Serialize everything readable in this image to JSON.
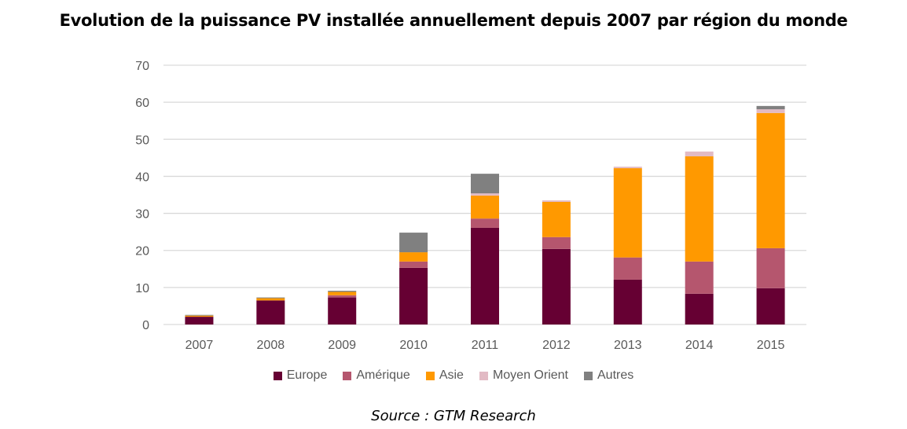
{
  "chart_data": {
    "type": "bar",
    "stacked": true,
    "title": "Evolution de la puissance PV installée annuellement depuis 2007 par région du monde",
    "xlabel": "",
    "ylabel": "",
    "ylim": [
      0,
      70
    ],
    "yticks": [
      0,
      10,
      20,
      30,
      40,
      50,
      60,
      70
    ],
    "grid": true,
    "legend_position": "bottom",
    "categories": [
      "2007",
      "2008",
      "2009",
      "2010",
      "2011",
      "2012",
      "2013",
      "2014",
      "2015"
    ],
    "series": [
      {
        "name": "Europe",
        "color": "#660033",
        "values": [
          2.1,
          6.5,
          7.3,
          15.3,
          26.1,
          20.4,
          12.1,
          8.3,
          9.8
        ]
      },
      {
        "name": "Amérique",
        "color": "#B5566E",
        "values": [
          0.0,
          0.0,
          0.6,
          1.7,
          2.5,
          3.2,
          6.0,
          8.7,
          10.8
        ]
      },
      {
        "name": "Asie",
        "color": "#FF9900",
        "values": [
          0.3,
          0.6,
          0.9,
          2.5,
          6.2,
          9.5,
          24.1,
          28.4,
          36.5
        ]
      },
      {
        "name": "Moyen Orient",
        "color": "#E2BAC4",
        "values": [
          0.0,
          0.0,
          0.0,
          0.0,
          0.6,
          0.4,
          0.4,
          1.3,
          1.0
        ]
      },
      {
        "name": "Autres",
        "color": "#808080",
        "values": [
          0.2,
          0.2,
          0.3,
          5.3,
          5.3,
          0.0,
          0.0,
          0.0,
          0.9
        ]
      }
    ],
    "source": "Source : GTM Research"
  }
}
